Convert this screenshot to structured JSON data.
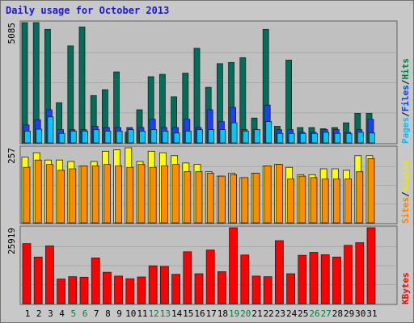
{
  "chart_data": {
    "type": "bar",
    "title": "Daily usage for October 2013",
    "categories": [
      "1",
      "2",
      "3",
      "4",
      "5",
      "6",
      "7",
      "8",
      "9",
      "10",
      "11",
      "12",
      "13",
      "14",
      "15",
      "16",
      "17",
      "18",
      "19",
      "20",
      "21",
      "22",
      "23",
      "24",
      "25",
      "26",
      "27",
      "28",
      "29",
      "30",
      "31"
    ],
    "weekend_days": [
      "5",
      "6",
      "12",
      "13",
      "19",
      "20",
      "26",
      "27"
    ],
    "panels": [
      {
        "id": "hits",
        "max_label": "5085",
        "ylim": [
          0,
          5085
        ],
        "legend": [
          {
            "text": "Pages",
            "color": "#00c0ff"
          },
          {
            "text": "/",
            "color": "#000000"
          },
          {
            "text": "Files",
            "color": "#0040ff"
          },
          {
            "text": "/",
            "color": "#000000"
          },
          {
            "text": "Hits",
            "color": "#008040"
          }
        ],
        "series": [
          {
            "name": "Hits",
            "color": "#006e5a",
            "values": [
              5085,
              5085,
              4800,
              1700,
              4100,
              4900,
              2000,
              2250,
              3000,
              450,
              1400,
              2800,
              2900,
              1950,
              2950,
              4000,
              2350,
              3350,
              3400,
              3600,
              1050,
              4800,
              700,
              3500,
              650,
              650,
              600,
              650,
              850,
              1250,
              1250
            ]
          },
          {
            "name": "Files",
            "color": "#1a40ff",
            "values": [
              760,
              980,
              1400,
              560,
              560,
              560,
              700,
              650,
              650,
              650,
              650,
              1000,
              650,
              650,
              1000,
              650,
              1400,
              900,
              1500,
              560,
              560,
              1600,
              560,
              560,
              450,
              450,
              560,
              560,
              450,
              560,
              1000
            ]
          },
          {
            "name": "Pages",
            "color": "#00c8ff",
            "values": [
              500,
              580,
              1100,
              400,
              500,
              500,
              560,
              500,
              500,
              560,
              500,
              560,
              500,
              420,
              500,
              560,
              560,
              560,
              850,
              500,
              560,
              900,
              400,
              400,
              400,
              400,
              450,
              400,
              400,
              450,
              420
            ]
          }
        ]
      },
      {
        "id": "visits",
        "max_label": "257",
        "ylim": [
          0,
          257
        ],
        "legend": [
          {
            "text": "Sites",
            "color": "#ff8000"
          },
          {
            "text": "/",
            "color": "#000000"
          },
          {
            "text": "Visits",
            "color": "#e8e800"
          }
        ],
        "series": [
          {
            "name": "Visits",
            "color": "#ffff00",
            "values": [
              225,
              240,
              215,
              215,
              210,
              195,
              210,
              245,
              250,
              257,
              210,
              245,
              240,
              230,
              205,
              200,
              175,
              160,
              170,
              155,
              170,
              195,
              200,
              190,
              165,
              165,
              185,
              185,
              180,
              230,
              230
            ]
          },
          {
            "name": "Sites",
            "color": "#ff8c00",
            "values": [
              190,
              215,
              200,
              180,
              185,
              195,
              195,
              200,
              195,
              190,
              200,
              190,
              195,
              200,
              175,
              175,
              170,
              160,
              165,
              155,
              170,
              195,
              200,
              150,
              160,
              155,
              150,
              150,
              150,
              175,
              220
            ]
          }
        ]
      },
      {
        "id": "kbytes",
        "max_label": "25919",
        "ylim": [
          0,
          25919
        ],
        "legend": [
          {
            "text": "KBytes",
            "color": "#ff0000"
          }
        ],
        "series": [
          {
            "name": "KBytes",
            "color": "#ff0000",
            "values": [
              20500,
              15900,
              19700,
              8400,
              9200,
              9000,
              15600,
              10700,
              9400,
              8500,
              9100,
              12900,
              12700,
              10000,
              17700,
              10200,
              18300,
              10900,
              25919,
              16600,
              9400,
              9200,
              21500,
              10200,
              16500,
              17500,
              16700,
              15900,
              19900,
              20800,
              25919
            ]
          }
        ]
      }
    ],
    "grid": true
  }
}
